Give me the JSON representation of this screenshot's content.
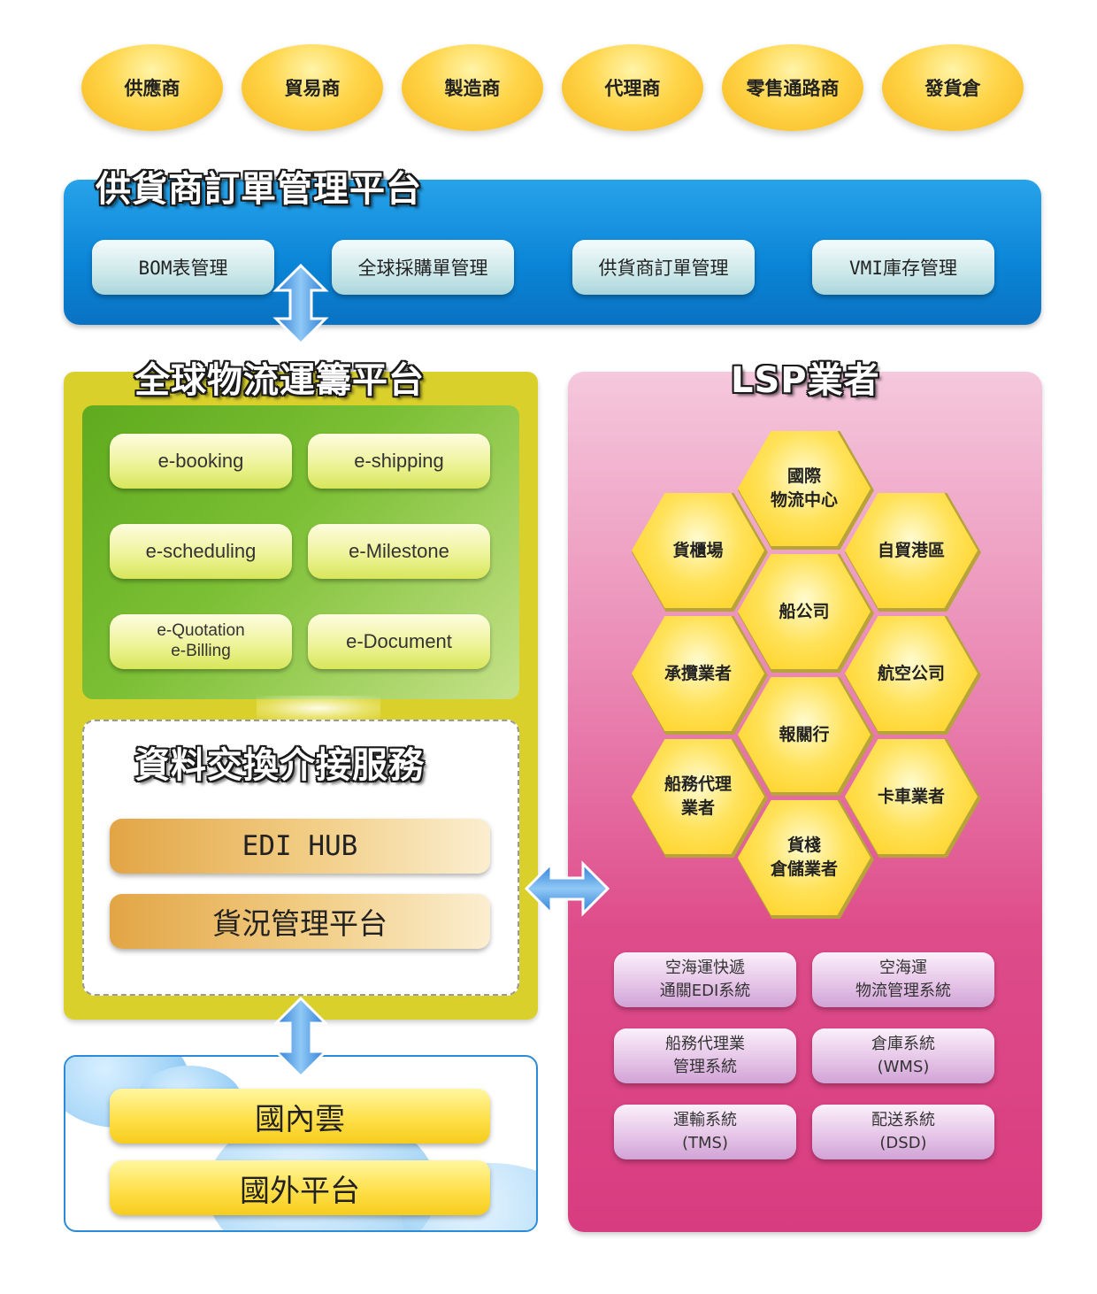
{
  "roles": [
    "供應商",
    "貿易商",
    "製造商",
    "代理商",
    "零售通路商",
    "發貨倉"
  ],
  "supplier_platform": {
    "title": "供貨商訂單管理平台",
    "items": [
      "BOM表管理",
      "全球採購單管理",
      "供貨商訂單管理",
      "VMI庫存管理"
    ]
  },
  "logistics_platform": {
    "title": "全球物流運籌平台",
    "modules": [
      {
        "lines": [
          "e-booking"
        ]
      },
      {
        "lines": [
          "e-shipping"
        ]
      },
      {
        "lines": [
          "e-scheduling"
        ]
      },
      {
        "lines": [
          "e-Milestone"
        ]
      },
      {
        "lines": [
          "e-Quotation",
          "e-Billing"
        ]
      },
      {
        "lines": [
          "e-Document"
        ]
      }
    ]
  },
  "data_exchange": {
    "title": "資料交換介接服務",
    "items": [
      "EDI HUB",
      "貨況管理平台"
    ]
  },
  "cloud": {
    "items": [
      "國內雲",
      "國外平台"
    ]
  },
  "lsp": {
    "title": "LSP業者",
    "hexagons": [
      {
        "lines": [
          "國際",
          "物流中心"
        ]
      },
      {
        "lines": [
          "貨櫃場"
        ]
      },
      {
        "lines": [
          "自貿港區"
        ]
      },
      {
        "lines": [
          "船公司"
        ]
      },
      {
        "lines": [
          "承攬業者"
        ]
      },
      {
        "lines": [
          "航空公司"
        ]
      },
      {
        "lines": [
          "報關行"
        ]
      },
      {
        "lines": [
          "船務代理",
          "業者"
        ]
      },
      {
        "lines": [
          "卡車業者"
        ]
      },
      {
        "lines": [
          "貨棧",
          "倉儲業者"
        ]
      }
    ],
    "systems": [
      {
        "lines": [
          "空海運快遞",
          "通關EDI系統"
        ]
      },
      {
        "lines": [
          "空海運",
          "物流管理系統"
        ]
      },
      {
        "lines": [
          "船務代理業",
          "管理系統"
        ]
      },
      {
        "lines": [
          "倉庫系統",
          "(WMS)"
        ]
      },
      {
        "lines": [
          "運輸系統",
          "(TMS)"
        ]
      },
      {
        "lines": [
          "配送系統",
          "(DSD)"
        ]
      }
    ]
  },
  "colors": {
    "supplier_panel": "#0a84d6",
    "logistics_panel": "#d9d02c",
    "modules_panel": "#7dc036",
    "lsp_panel": "#de4c8a",
    "role_oval": "#ffd54a",
    "arrow": "#3d8fe0"
  },
  "icons": [
    "double-arrow-vertical-icon",
    "double-arrow-horizontal-icon"
  ]
}
